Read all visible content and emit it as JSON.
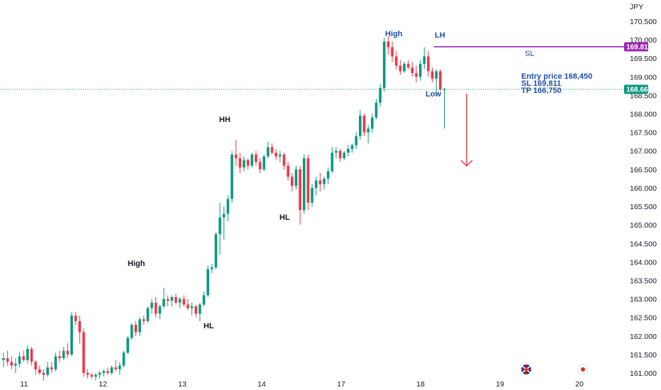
{
  "chart_data": {
    "type": "candlestick",
    "currency": "JPY",
    "y_ticks": [
      "170.500",
      "170.000",
      "169.500",
      "169.000",
      "168.500",
      "168.000",
      "167.500",
      "167.000",
      "166.500",
      "166.000",
      "165.500",
      "165.000",
      "164.500",
      "164.000",
      "163.500",
      "163.000",
      "162.500",
      "162.000",
      "161.500",
      "161.000"
    ],
    "y_range": [
      160.95,
      171.05
    ],
    "x_ticks": [
      "11",
      "12",
      "13",
      "14",
      "17",
      "18",
      "19",
      "20"
    ],
    "current_price": "168.662",
    "sl_price": "169.811",
    "colors": {
      "up": "#089981",
      "down": "#F23645",
      "sl_line": "#9C27B0",
      "arrow": "#F23645",
      "price_line": "#089981",
      "annotation_blue": "#1E4FA8",
      "annotation_dark": "#131722"
    },
    "candles": [
      [
        161.35,
        161.55,
        161.15,
        161.4
      ],
      [
        161.4,
        161.6,
        161.2,
        161.3
      ],
      [
        161.3,
        161.45,
        161.1,
        161.2
      ],
      [
        161.2,
        161.4,
        161.0,
        161.25
      ],
      [
        161.25,
        161.55,
        161.15,
        161.45
      ],
      [
        161.45,
        161.6,
        161.3,
        161.35
      ],
      [
        161.35,
        161.75,
        161.25,
        161.65
      ],
      [
        161.65,
        161.7,
        161.2,
        161.3
      ],
      [
        161.3,
        161.35,
        160.95,
        161.1
      ],
      [
        161.1,
        161.2,
        160.95,
        161.0
      ],
      [
        161.0,
        161.1,
        160.8,
        160.95
      ],
      [
        160.95,
        161.3,
        160.9,
        161.15
      ],
      [
        161.15,
        161.3,
        161.0,
        161.1
      ],
      [
        161.1,
        161.55,
        161.05,
        161.45
      ],
      [
        161.45,
        161.6,
        161.3,
        161.4
      ],
      [
        161.4,
        161.7,
        161.35,
        161.6
      ],
      [
        161.6,
        161.8,
        161.4,
        161.5
      ],
      [
        161.5,
        162.65,
        161.45,
        162.55
      ],
      [
        162.55,
        162.65,
        162.3,
        162.4
      ],
      [
        162.4,
        162.55,
        161.8,
        162.1
      ],
      [
        162.1,
        162.2,
        160.9,
        161.0
      ],
      [
        161.0,
        161.1,
        160.85,
        160.95
      ],
      [
        160.95,
        161.0,
        160.85,
        160.9
      ],
      [
        160.9,
        161.0,
        160.8,
        160.95
      ],
      [
        160.95,
        161.05,
        160.85,
        161.0
      ],
      [
        161.0,
        161.1,
        160.9,
        161.05
      ],
      [
        161.05,
        161.15,
        160.95,
        161.0
      ],
      [
        161.0,
        161.2,
        160.95,
        161.15
      ],
      [
        161.15,
        161.35,
        161.05,
        161.1
      ],
      [
        161.1,
        161.3,
        160.95,
        161.2
      ],
      [
        161.2,
        161.6,
        161.15,
        161.55
      ],
      [
        161.55,
        162.0,
        161.5,
        161.95
      ],
      [
        161.95,
        162.35,
        161.9,
        162.3
      ],
      [
        162.3,
        162.4,
        162.0,
        162.1
      ],
      [
        162.1,
        162.5,
        162.0,
        162.45
      ],
      [
        162.45,
        162.55,
        162.3,
        162.4
      ],
      [
        162.4,
        162.8,
        162.35,
        162.75
      ],
      [
        162.75,
        163.0,
        162.6,
        162.9
      ],
      [
        162.9,
        163.05,
        162.5,
        162.6
      ],
      [
        162.6,
        162.85,
        162.45,
        162.8
      ],
      [
        162.8,
        163.3,
        162.75,
        163.0
      ],
      [
        163.0,
        163.1,
        162.8,
        162.95
      ],
      [
        162.95,
        163.1,
        162.8,
        163.05
      ],
      [
        163.05,
        163.15,
        162.85,
        162.9
      ],
      [
        162.9,
        163.05,
        162.75,
        163.0
      ],
      [
        163.0,
        163.1,
        162.8,
        162.85
      ],
      [
        162.85,
        163.0,
        162.7,
        162.75
      ],
      [
        162.75,
        162.9,
        162.55,
        162.8
      ],
      [
        162.8,
        162.85,
        162.5,
        162.6
      ],
      [
        162.6,
        162.9,
        162.4,
        162.85
      ],
      [
        162.85,
        163.2,
        162.8,
        163.1
      ],
      [
        163.1,
        163.9,
        163.05,
        163.8
      ],
      [
        163.8,
        163.95,
        163.7,
        163.85
      ],
      [
        163.85,
        164.8,
        163.8,
        164.75
      ],
      [
        164.75,
        165.6,
        164.2,
        165.2
      ],
      [
        165.2,
        165.5,
        164.6,
        165.3
      ],
      [
        165.3,
        165.8,
        165.1,
        165.7
      ],
      [
        165.7,
        167.0,
        165.6,
        166.9
      ],
      [
        166.9,
        167.3,
        166.6,
        166.8
      ],
      [
        166.8,
        166.95,
        166.4,
        166.55
      ],
      [
        166.55,
        166.85,
        166.45,
        166.75
      ],
      [
        166.75,
        166.8,
        166.5,
        166.6
      ],
      [
        166.6,
        166.95,
        166.55,
        166.9
      ],
      [
        166.9,
        167.0,
        166.6,
        166.7
      ],
      [
        166.7,
        166.8,
        166.4,
        166.5
      ],
      [
        166.5,
        166.9,
        166.45,
        166.85
      ],
      [
        166.85,
        167.25,
        166.8,
        167.1
      ],
      [
        167.1,
        167.2,
        166.9,
        166.95
      ],
      [
        166.95,
        167.05,
        166.75,
        166.85
      ],
      [
        166.85,
        167.0,
        166.7,
        166.9
      ],
      [
        166.9,
        166.95,
        166.5,
        166.6
      ],
      [
        166.6,
        166.7,
        166.2,
        166.3
      ],
      [
        166.3,
        166.4,
        165.9,
        166.05
      ],
      [
        166.05,
        166.6,
        165.95,
        166.5
      ],
      [
        166.5,
        166.6,
        165.0,
        165.4
      ],
      [
        165.4,
        166.9,
        165.3,
        166.8
      ],
      [
        166.8,
        166.9,
        165.4,
        165.6
      ],
      [
        165.6,
        166.1,
        165.5,
        166.0
      ],
      [
        166.0,
        166.3,
        165.8,
        166.2
      ],
      [
        166.2,
        166.4,
        165.9,
        166.1
      ],
      [
        166.1,
        166.3,
        165.95,
        166.25
      ],
      [
        166.25,
        166.55,
        166.1,
        166.45
      ],
      [
        166.45,
        167.1,
        166.4,
        166.95
      ],
      [
        166.95,
        167.1,
        166.8,
        167.0
      ],
      [
        167.0,
        167.05,
        166.7,
        166.8
      ],
      [
        166.8,
        167.0,
        166.75,
        166.95
      ],
      [
        166.95,
        167.15,
        166.85,
        167.05
      ],
      [
        167.05,
        167.2,
        166.95,
        167.15
      ],
      [
        167.15,
        167.5,
        167.05,
        167.4
      ],
      [
        167.4,
        168.1,
        167.3,
        167.95
      ],
      [
        167.95,
        168.0,
        167.4,
        167.5
      ],
      [
        167.5,
        167.7,
        167.2,
        167.6
      ],
      [
        167.6,
        168.0,
        167.5,
        167.9
      ],
      [
        167.9,
        168.4,
        167.85,
        168.3
      ],
      [
        168.3,
        168.8,
        168.2,
        168.7
      ],
      [
        168.7,
        170.05,
        168.6,
        169.95
      ],
      [
        169.95,
        170.1,
        169.6,
        169.8
      ],
      [
        169.8,
        169.95,
        169.4,
        169.55
      ],
      [
        169.55,
        169.7,
        169.2,
        169.3
      ],
      [
        169.3,
        169.45,
        169.05,
        169.15
      ],
      [
        169.15,
        169.4,
        169.1,
        169.35
      ],
      [
        169.35,
        169.45,
        169.2,
        169.25
      ],
      [
        169.25,
        169.4,
        169.0,
        169.1
      ],
      [
        169.1,
        169.3,
        168.85,
        169.0
      ],
      [
        169.0,
        169.45,
        168.9,
        169.35
      ],
      [
        169.35,
        169.8,
        169.2,
        169.55
      ],
      [
        169.55,
        169.7,
        169.0,
        169.15
      ],
      [
        169.15,
        169.25,
        168.85,
        168.95
      ],
      [
        168.95,
        169.2,
        168.5,
        169.15
      ],
      [
        169.15,
        169.2,
        168.6,
        168.66
      ],
      [
        168.66,
        168.7,
        167.6,
        168.66
      ]
    ],
    "annotations": {
      "high_1": "High",
      "hl_1": "HL",
      "hh": "HH",
      "hl_2": "HL",
      "high_2": "High",
      "lh": "LH",
      "low": "Low",
      "sl": "SL",
      "entry": "Entry price 168,450",
      "sl_text": "SL 169,811",
      "tp_text": "TP  166,750"
    }
  }
}
